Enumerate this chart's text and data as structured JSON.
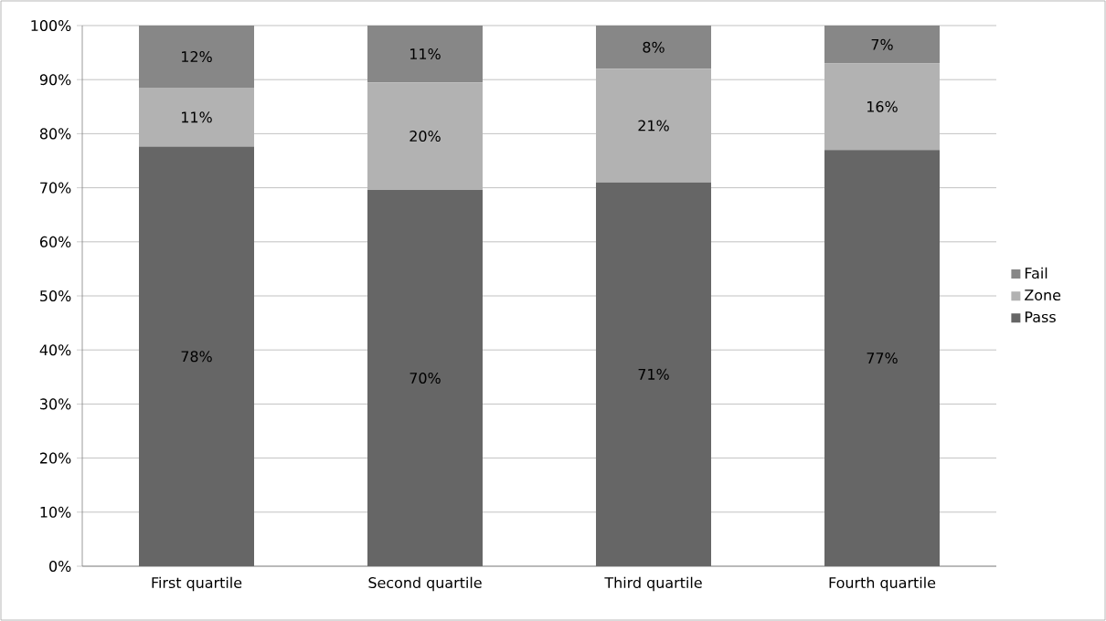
{
  "chart_data": {
    "type": "bar",
    "stacked": true,
    "categories": [
      "First quartile",
      "Second quartile",
      "Third quartile",
      "Fourth quartile"
    ],
    "series": [
      {
        "name": "Pass",
        "color": "#666666",
        "values": [
          77.6,
          69.6,
          71,
          77
        ],
        "value_labels": [
          "78%",
          "70%",
          "71%",
          "77%"
        ]
      },
      {
        "name": "Zone",
        "color": "#b2b2b2",
        "values": [
          10.9,
          19.9,
          21,
          16
        ],
        "value_labels": [
          "11%",
          "20%",
          "21%",
          "16%"
        ]
      },
      {
        "name": "Fail",
        "color": "#878787",
        "values": [
          11.5,
          10.5,
          8,
          7
        ],
        "value_labels": [
          "12%",
          "11%",
          "8%",
          "7%"
        ]
      }
    ],
    "ylim": [
      0,
      100
    ],
    "yticks": [
      {
        "value": 0,
        "label": "0%"
      },
      {
        "value": 10,
        "label": "10%"
      },
      {
        "value": 20,
        "label": "20%"
      },
      {
        "value": 30,
        "label": "30%"
      },
      {
        "value": 40,
        "label": "40%"
      },
      {
        "value": 50,
        "label": "50%"
      },
      {
        "value": 60,
        "label": "60%"
      },
      {
        "value": 70,
        "label": "70%"
      },
      {
        "value": 80,
        "label": "80%"
      },
      {
        "value": 90,
        "label": "90%"
      },
      {
        "value": 100,
        "label": "100%"
      }
    ],
    "grid": "y",
    "legend": "right"
  }
}
